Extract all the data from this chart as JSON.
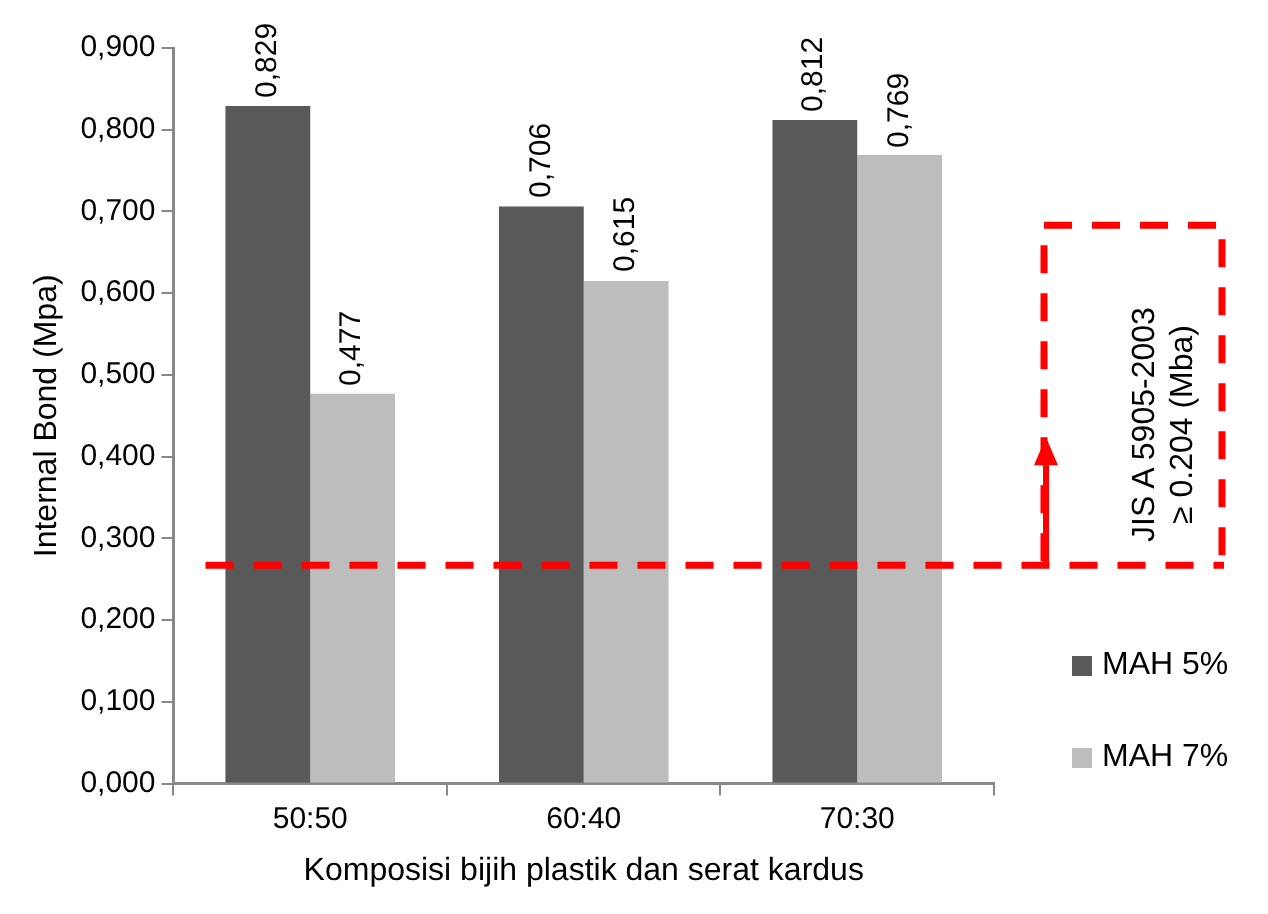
{
  "chart_data": {
    "type": "bar",
    "xlabel": "Komposisi bijih plastik dan serat kardus",
    "ylabel": "Internal Bond (Mpa)",
    "categories": [
      "50:50",
      "60:40",
      "70:30"
    ],
    "series": [
      {
        "name": "MAH 5%",
        "color": "#595959",
        "values": [
          0.829,
          0.706,
          0.812
        ],
        "value_labels": [
          "0,829",
          "0,706",
          "0,812"
        ]
      },
      {
        "name": "MAH 7%",
        "color": "#bdbdbd",
        "values": [
          0.477,
          0.615,
          0.769
        ],
        "value_labels": [
          "0,477",
          "0,615",
          "0,769"
        ]
      }
    ],
    "ylim": [
      0,
      0.9
    ],
    "yticks": [
      {
        "value": 0,
        "label": "0,000"
      },
      {
        "value": 0.1,
        "label": "0,100"
      },
      {
        "value": 0.2,
        "label": "0,200"
      },
      {
        "value": 0.3,
        "label": "0,300"
      },
      {
        "value": 0.4,
        "label": "0,400"
      },
      {
        "value": 0.5,
        "label": "0,500"
      },
      {
        "value": 0.6,
        "label": "0,600"
      },
      {
        "value": 0.7,
        "label": "0,700"
      },
      {
        "value": 0.8,
        "label": "0,800"
      },
      {
        "value": 0.9,
        "label": "0,900"
      }
    ],
    "ref_lines": [
      {
        "axis": "y",
        "value": 0.267,
        "label": "JIS A 5905-2003\n≥ 0.204 (Mba)",
        "color": "#ff0000",
        "line_style": "dashed"
      }
    ],
    "grid": false,
    "legend": "right"
  }
}
